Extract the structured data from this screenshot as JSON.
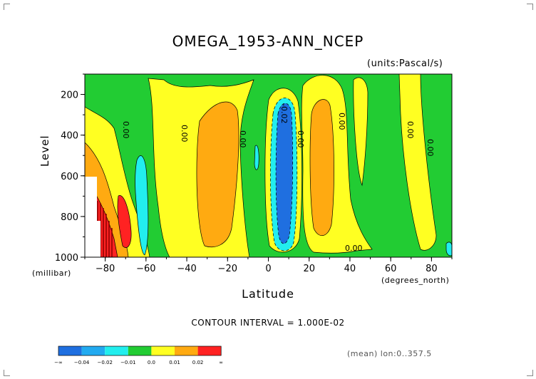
{
  "chart_data": {
    "type": "heatmap",
    "title": "OMEGA_1953-ANN_NCEP",
    "units": "(units:Pascal/s)",
    "ylabel": "Level",
    "yunits": "(millibar)",
    "xlabel": "Latitude",
    "xunits": "(degrees_north)",
    "xlim": [
      -90,
      90
    ],
    "ylim": [
      1000,
      100
    ],
    "x_ticks": [
      -80,
      -60,
      -40,
      -20,
      0,
      20,
      40,
      60,
      80
    ],
    "y_ticks": [
      200,
      400,
      600,
      800,
      1000
    ],
    "contour_interval": "CONTOUR INTERVAL = 1.000E-02",
    "mean_info": "(mean) lon:0..357.5",
    "contour_labels": [
      "0.00",
      "0.00",
      "0.00",
      "0.00",
      "0.00",
      "-0.02",
      "0.00",
      "0.00",
      "0.00",
      "0.00"
    ],
    "colorbar": {
      "labels": [
        "-∞",
        "-0.04",
        "-0.02",
        "-0.01",
        "0.0",
        "0.01",
        "0.02",
        "∞"
      ],
      "colors": [
        "#1f6fe0",
        "#22aaf0",
        "#22eeee",
        "#22cc33",
        "#ffff22",
        "#ffaa11",
        "#ff2222"
      ]
    },
    "levels": [
      {
        "range": "-0.04..-0.02",
        "color": "#1f6fe0"
      },
      {
        "range": "-0.02..-0.01",
        "color": "#22ccee"
      },
      {
        "range": "-0.01..0.0",
        "color": "#22cc33"
      },
      {
        "range": "0.0..0.01",
        "color": "#ffff22"
      },
      {
        "range": "0.01..0.02",
        "color": "#ffaa11"
      },
      {
        "range": "0.02..inf",
        "color": "#ff2222"
      }
    ]
  }
}
